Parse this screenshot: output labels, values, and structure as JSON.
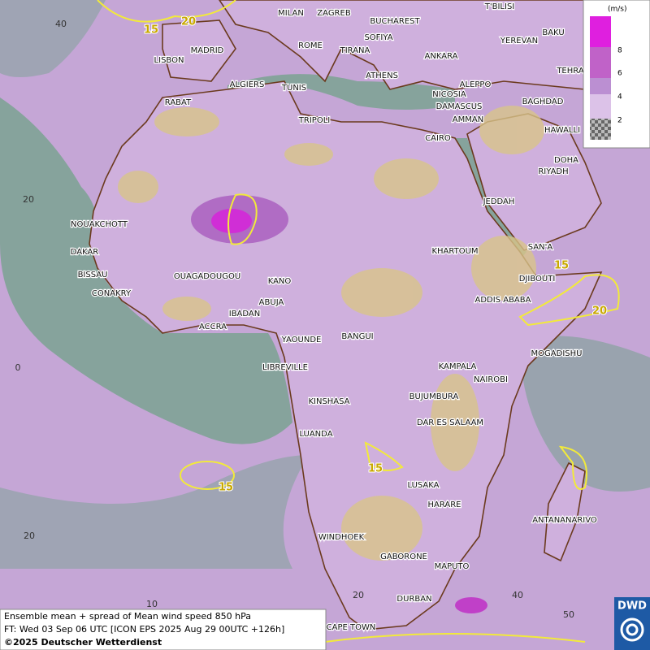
{
  "map": {
    "cities": [
      "MILAN",
      "ZAGREB",
      "BUCHAREST",
      "T'BILISI",
      "BAKU",
      "YEREVAN",
      "TEHRA",
      "MADRID",
      "ROME",
      "SOFIYA",
      "ANKARA",
      "LISBON",
      "TIRANA",
      "ATHENS",
      "ALGIERS",
      "TUNIS",
      "RABAT",
      "NICOSIA",
      "ALEPPO",
      "BAGHDAD",
      "DAMASCUS",
      "AMMAN",
      "TRIPOLI",
      "HAWALLI",
      "CAIRO",
      "DOHA",
      "RIYADH",
      "NOUAKCHOTT",
      "JEDDAH",
      "DAKAR",
      "SAN'A",
      "BISSAU",
      "KHARTOUM",
      "OUAGADOUGOU",
      "KANO",
      "DJIBOUTI",
      "CONAKRY",
      "ABUJA",
      "ADDIS ABABA",
      "IBADAN",
      "ACCRA",
      "YAOUNDE",
      "BANGUI",
      "MOGADISHU",
      "LIBREVILLE",
      "KAMPALA",
      "NAIROBI",
      "KINSHASA",
      "BUJUMBURA",
      "DAR ES SALAAM",
      "LUANDA",
      "LUSAKA",
      "HARARE",
      "ANTANANARIVO",
      "WINDHOEK",
      "GABORONE",
      "MAPUTO",
      "DURBAN",
      "CAPE TOWN"
    ],
    "contour_labels": [
      "15",
      "20",
      "15",
      "20",
      "15",
      "15"
    ],
    "grid_labels": [
      "40",
      "20",
      "0",
      "20",
      "10",
      "20",
      "40",
      "50"
    ],
    "legend": {
      "unit": "(m/s)",
      "levels": [
        "8",
        "6",
        "4",
        "2"
      ]
    },
    "caption": [
      "Ensemble mean + spread of Mean wind speed 850 hPa",
      "FT: Wed 03 Sep 06 UTC [ICON EPS 2025 Aug 29 00UTC +126h]",
      "©2025 Deutscher Wetterdienst"
    ],
    "logo": "DWD"
  }
}
